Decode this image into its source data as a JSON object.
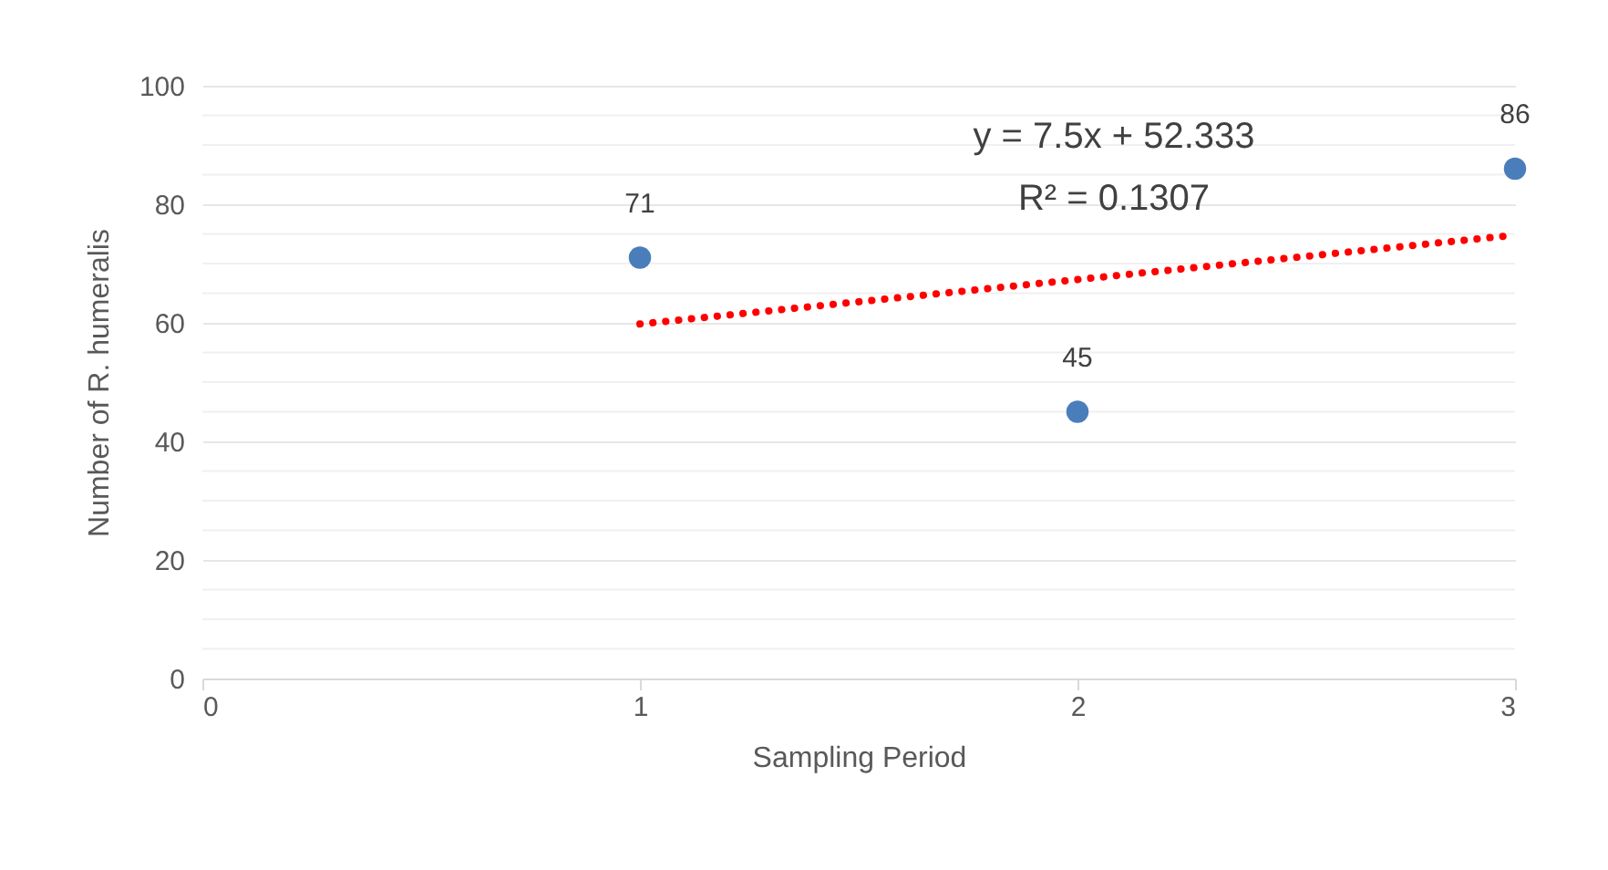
{
  "chart_data": {
    "type": "scatter",
    "xlabel": "Sampling Period",
    "ylabel": "Number of  R. humeralis",
    "xlim": [
      0,
      3
    ],
    "xticks": [
      0,
      1,
      2,
      3
    ],
    "ylim": [
      0,
      100
    ],
    "yticks": [
      0,
      {
        "value": 5,
        "label": null
      },
      {
        "value": 10,
        "label": null
      },
      {
        "value": 15,
        "label": null
      },
      20,
      {
        "value": 25,
        "label": null
      },
      {
        "value": 30,
        "label": null
      },
      {
        "value": 35,
        "label": null
      },
      40,
      {
        "value": 45,
        "label": null
      },
      {
        "value": 50,
        "label": null
      },
      {
        "value": 55,
        "label": null
      },
      60,
      {
        "value": 65,
        "label": null
      },
      {
        "value": 70,
        "label": null
      },
      {
        "value": 75,
        "label": null
      },
      80,
      {
        "value": 85,
        "label": null
      },
      {
        "value": 90,
        "label": null
      },
      {
        "value": 95,
        "label": null
      },
      100
    ],
    "grid": "y",
    "series": [
      {
        "type": "scatter",
        "x": [
          1,
          2,
          3
        ],
        "values": [
          71,
          45,
          86
        ],
        "color": "#4a7ebb",
        "marker": "circle",
        "data_labels": true
      },
      {
        "type": "line",
        "x": [
          1,
          3
        ],
        "values": [
          59.8,
          74.8
        ],
        "color": "#ff0000",
        "line_style": "dotted"
      }
    ],
    "annotations": [
      "y = 7.5x + 52.333",
      "R² = 0.1307"
    ]
  }
}
